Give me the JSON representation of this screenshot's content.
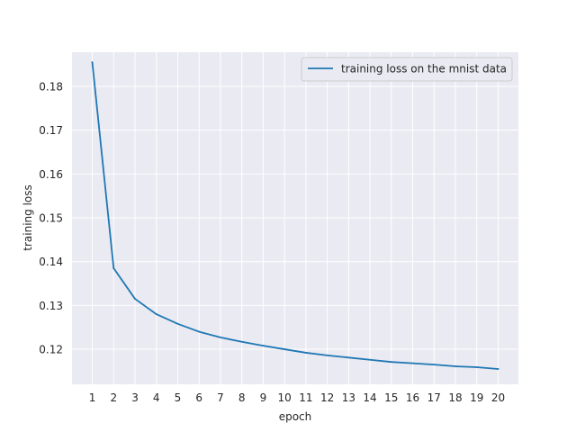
{
  "chart_data": {
    "type": "line",
    "title": "",
    "xlabel": "epoch",
    "ylabel": "training loss",
    "xlim": [
      0.05,
      20.95
    ],
    "ylim": [
      0.112,
      0.1878
    ],
    "grid": true,
    "background": "#eaeaf2",
    "legend": {
      "position": "top-right"
    },
    "x_ticks": [
      1,
      2,
      3,
      4,
      5,
      6,
      7,
      8,
      9,
      10,
      11,
      12,
      13,
      14,
      15,
      16,
      17,
      18,
      19,
      20
    ],
    "x_tick_labels": [
      "1",
      "2",
      "3",
      "4",
      "5",
      "6",
      "7",
      "8",
      "9",
      "10",
      "11",
      "12",
      "13",
      "14",
      "15",
      "16",
      "17",
      "18",
      "19",
      "20"
    ],
    "y_ticks": [
      0.12,
      0.13,
      0.14,
      0.15,
      0.16,
      0.17,
      0.18
    ],
    "y_tick_labels": [
      "0.12",
      "0.13",
      "0.14",
      "0.15",
      "0.16",
      "0.17",
      "0.18"
    ],
    "x": [
      1,
      2,
      3,
      4,
      5,
      6,
      7,
      8,
      9,
      10,
      11,
      12,
      13,
      14,
      15,
      16,
      17,
      18,
      19,
      20
    ],
    "series": [
      {
        "name": "training loss on the mnist data",
        "color": "#1f77b4",
        "values": [
          0.1855,
          0.1385,
          0.1315,
          0.128,
          0.1258,
          0.124,
          0.1227,
          0.1217,
          0.1208,
          0.12,
          0.1192,
          0.1186,
          0.1181,
          0.1176,
          0.1171,
          0.1168,
          0.1165,
          0.1161,
          0.1159,
          0.1155
        ]
      }
    ]
  }
}
